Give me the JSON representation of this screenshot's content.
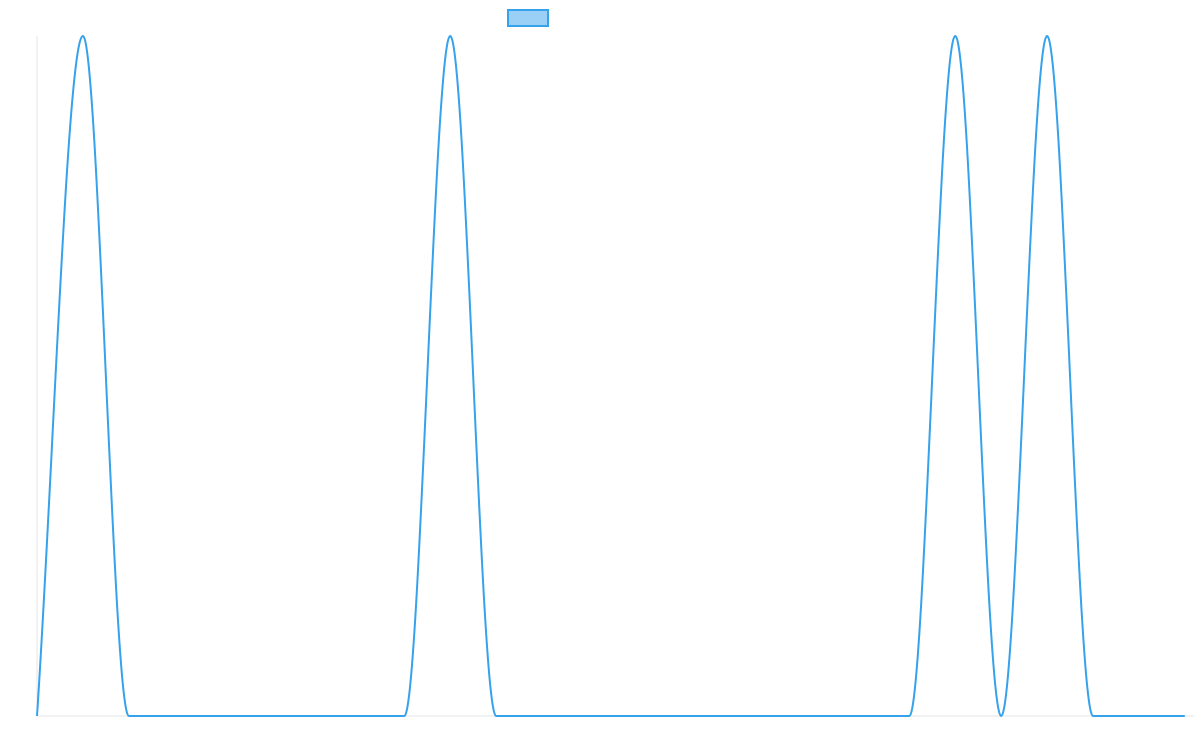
{
  "chart_data": {
    "type": "line",
    "title": "",
    "xlabel": "",
    "ylabel": "",
    "x": [
      0,
      1,
      2,
      3,
      4,
      5,
      6,
      7,
      8,
      9,
      10,
      11,
      12,
      13,
      14,
      15,
      16,
      17,
      18,
      19,
      20,
      21,
      22,
      23,
      24,
      25
    ],
    "series": [
      {
        "name": "",
        "color": "#36a2eb",
        "fill": "#9ad0f5",
        "values": [
          0,
          1,
          0,
          0,
          0,
          0,
          0,
          0,
          0,
          1,
          0,
          0,
          0,
          0,
          0,
          0,
          0,
          0,
          0,
          0,
          1,
          0,
          1,
          0,
          0,
          0
        ]
      }
    ],
    "xlim": [
      0,
      25.2
    ],
    "ylim": [
      0,
      1
    ],
    "grid": false,
    "legend": "top-center"
  }
}
